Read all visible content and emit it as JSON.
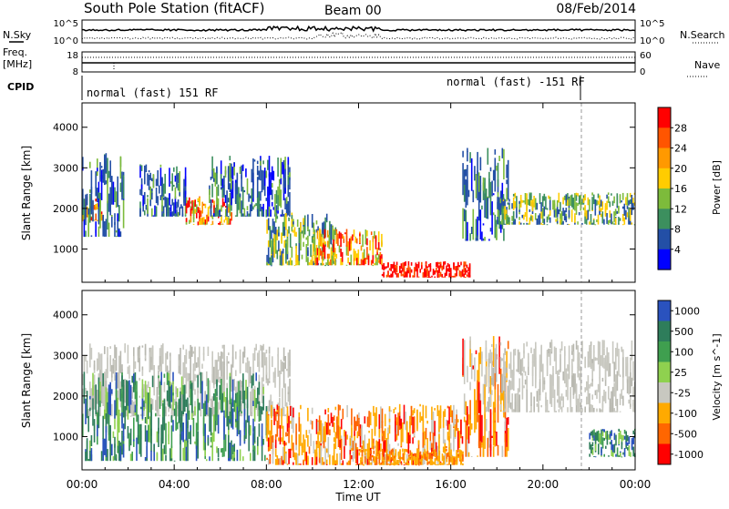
{
  "header": {
    "station": "South Pole Station (fitACF)",
    "beam": "Beam 00",
    "date": "08/Feb/2014"
  },
  "noise_panel": {
    "left_label": "N.Sky",
    "left_ticks": [
      "10^5",
      "10^0"
    ],
    "right_ticks": [
      "10^5",
      "10^0"
    ],
    "right_label": "N.Search"
  },
  "freq_panel": {
    "left_label_line1": "Freq.",
    "left_label_line2": "[MHz]",
    "left_ticks": [
      "18",
      "8"
    ],
    "right_ticks": [
      "60",
      "0"
    ],
    "right_label": "Nave"
  },
  "cpid_panel": {
    "label": "CPID",
    "program_1": "normal (fast) 151 RF",
    "program_2": "normal (fast) -151 RF"
  },
  "chart_data": [
    {
      "type": "heatmap",
      "title": "",
      "xlabel": "",
      "ylabel": "Slant Range [km]",
      "x_ticks": [
        "00:00",
        "04:00",
        "08:00",
        "12:00",
        "16:00",
        "20:00",
        "00:00"
      ],
      "y_ticks": [
        1000,
        2000,
        3000,
        4000
      ],
      "ylim": [
        180,
        4600
      ],
      "xlim_hours": [
        0,
        24
      ],
      "colorbar": {
        "label": "Power [dB]",
        "ticks": [
          "28",
          "24",
          "20",
          "16",
          "12",
          "8",
          "4"
        ],
        "colors": [
          "#ff0000",
          "#ff5500",
          "#ff9900",
          "#ffcc00",
          "#7dbb3b",
          "#3c8f5e",
          "#234fa6",
          "#0000ff"
        ]
      },
      "data": [
        {
          "hour_range": [
            0.0,
            1.0
          ],
          "km_range": [
            1700,
            2300
          ],
          "level": "high"
        },
        {
          "hour_range": [
            0.0,
            1.8
          ],
          "km_range": [
            1300,
            3400
          ],
          "level": "low"
        },
        {
          "hour_range": [
            2.5,
            4.5
          ],
          "km_range": [
            1800,
            3100
          ],
          "level": "low"
        },
        {
          "hour_range": [
            4.5,
            6.5
          ],
          "km_range": [
            1600,
            2300
          ],
          "level": "high"
        },
        {
          "hour_range": [
            5.5,
            9.0
          ],
          "km_range": [
            1800,
            3300
          ],
          "level": "low"
        },
        {
          "hour_range": [
            8.0,
            11.0
          ],
          "km_range": [
            600,
            1900
          ],
          "level": "medium"
        },
        {
          "hour_range": [
            10.0,
            13.0
          ],
          "km_range": [
            600,
            1500
          ],
          "level": "high"
        },
        {
          "hour_range": [
            13.0,
            16.8
          ],
          "km_range": [
            300,
            700
          ],
          "level": "very_high"
        },
        {
          "hour_range": [
            16.5,
            18.5
          ],
          "km_range": [
            1200,
            3500
          ],
          "level": "low"
        },
        {
          "hour_range": [
            18.0,
            24.0
          ],
          "km_range": [
            1600,
            2400
          ],
          "level": "medium"
        }
      ]
    },
    {
      "type": "heatmap",
      "title": "",
      "xlabel": "Time UT",
      "ylabel": "Slant Range [km]",
      "x_ticks": [
        "00:00",
        "04:00",
        "08:00",
        "12:00",
        "16:00",
        "20:00",
        "00:00"
      ],
      "y_ticks": [
        1000,
        2000,
        3000,
        4000
      ],
      "ylim": [
        180,
        4600
      ],
      "xlim_hours": [
        0,
        24
      ],
      "colorbar": {
        "label": "Velocity [m s^-1]",
        "ticks": [
          "1000",
          "500",
          "100",
          "25",
          "-25",
          "-100",
          "-500",
          "-1000"
        ],
        "colors": [
          "#2a52be",
          "#2e7d5b",
          "#3f9f4f",
          "#8fd14f",
          "#c8c8c0",
          "#ffaa00",
          "#ff6600",
          "#ff0000"
        ]
      },
      "data": [
        {
          "hour_range": [
            0.0,
            9.0
          ],
          "km_range": [
            1500,
            3300
          ],
          "level": "ground_scatter"
        },
        {
          "hour_range": [
            0.0,
            8.0
          ],
          "km_range": [
            400,
            2600
          ],
          "level": "positive"
        },
        {
          "hour_range": [
            8.0,
            16.5
          ],
          "km_range": [
            300,
            1800
          ],
          "level": "negative"
        },
        {
          "hour_range": [
            12.0,
            16.5
          ],
          "km_range": [
            300,
            700
          ],
          "level": "moderate_negative"
        },
        {
          "hour_range": [
            16.5,
            18.5
          ],
          "km_range": [
            500,
            3500
          ],
          "level": "negative"
        },
        {
          "hour_range": [
            17.5,
            24.0
          ],
          "km_range": [
            1600,
            3400
          ],
          "level": "ground_scatter"
        },
        {
          "hour_range": [
            22.0,
            24.0
          ],
          "km_range": [
            500,
            1200
          ],
          "level": "positive"
        }
      ]
    }
  ]
}
